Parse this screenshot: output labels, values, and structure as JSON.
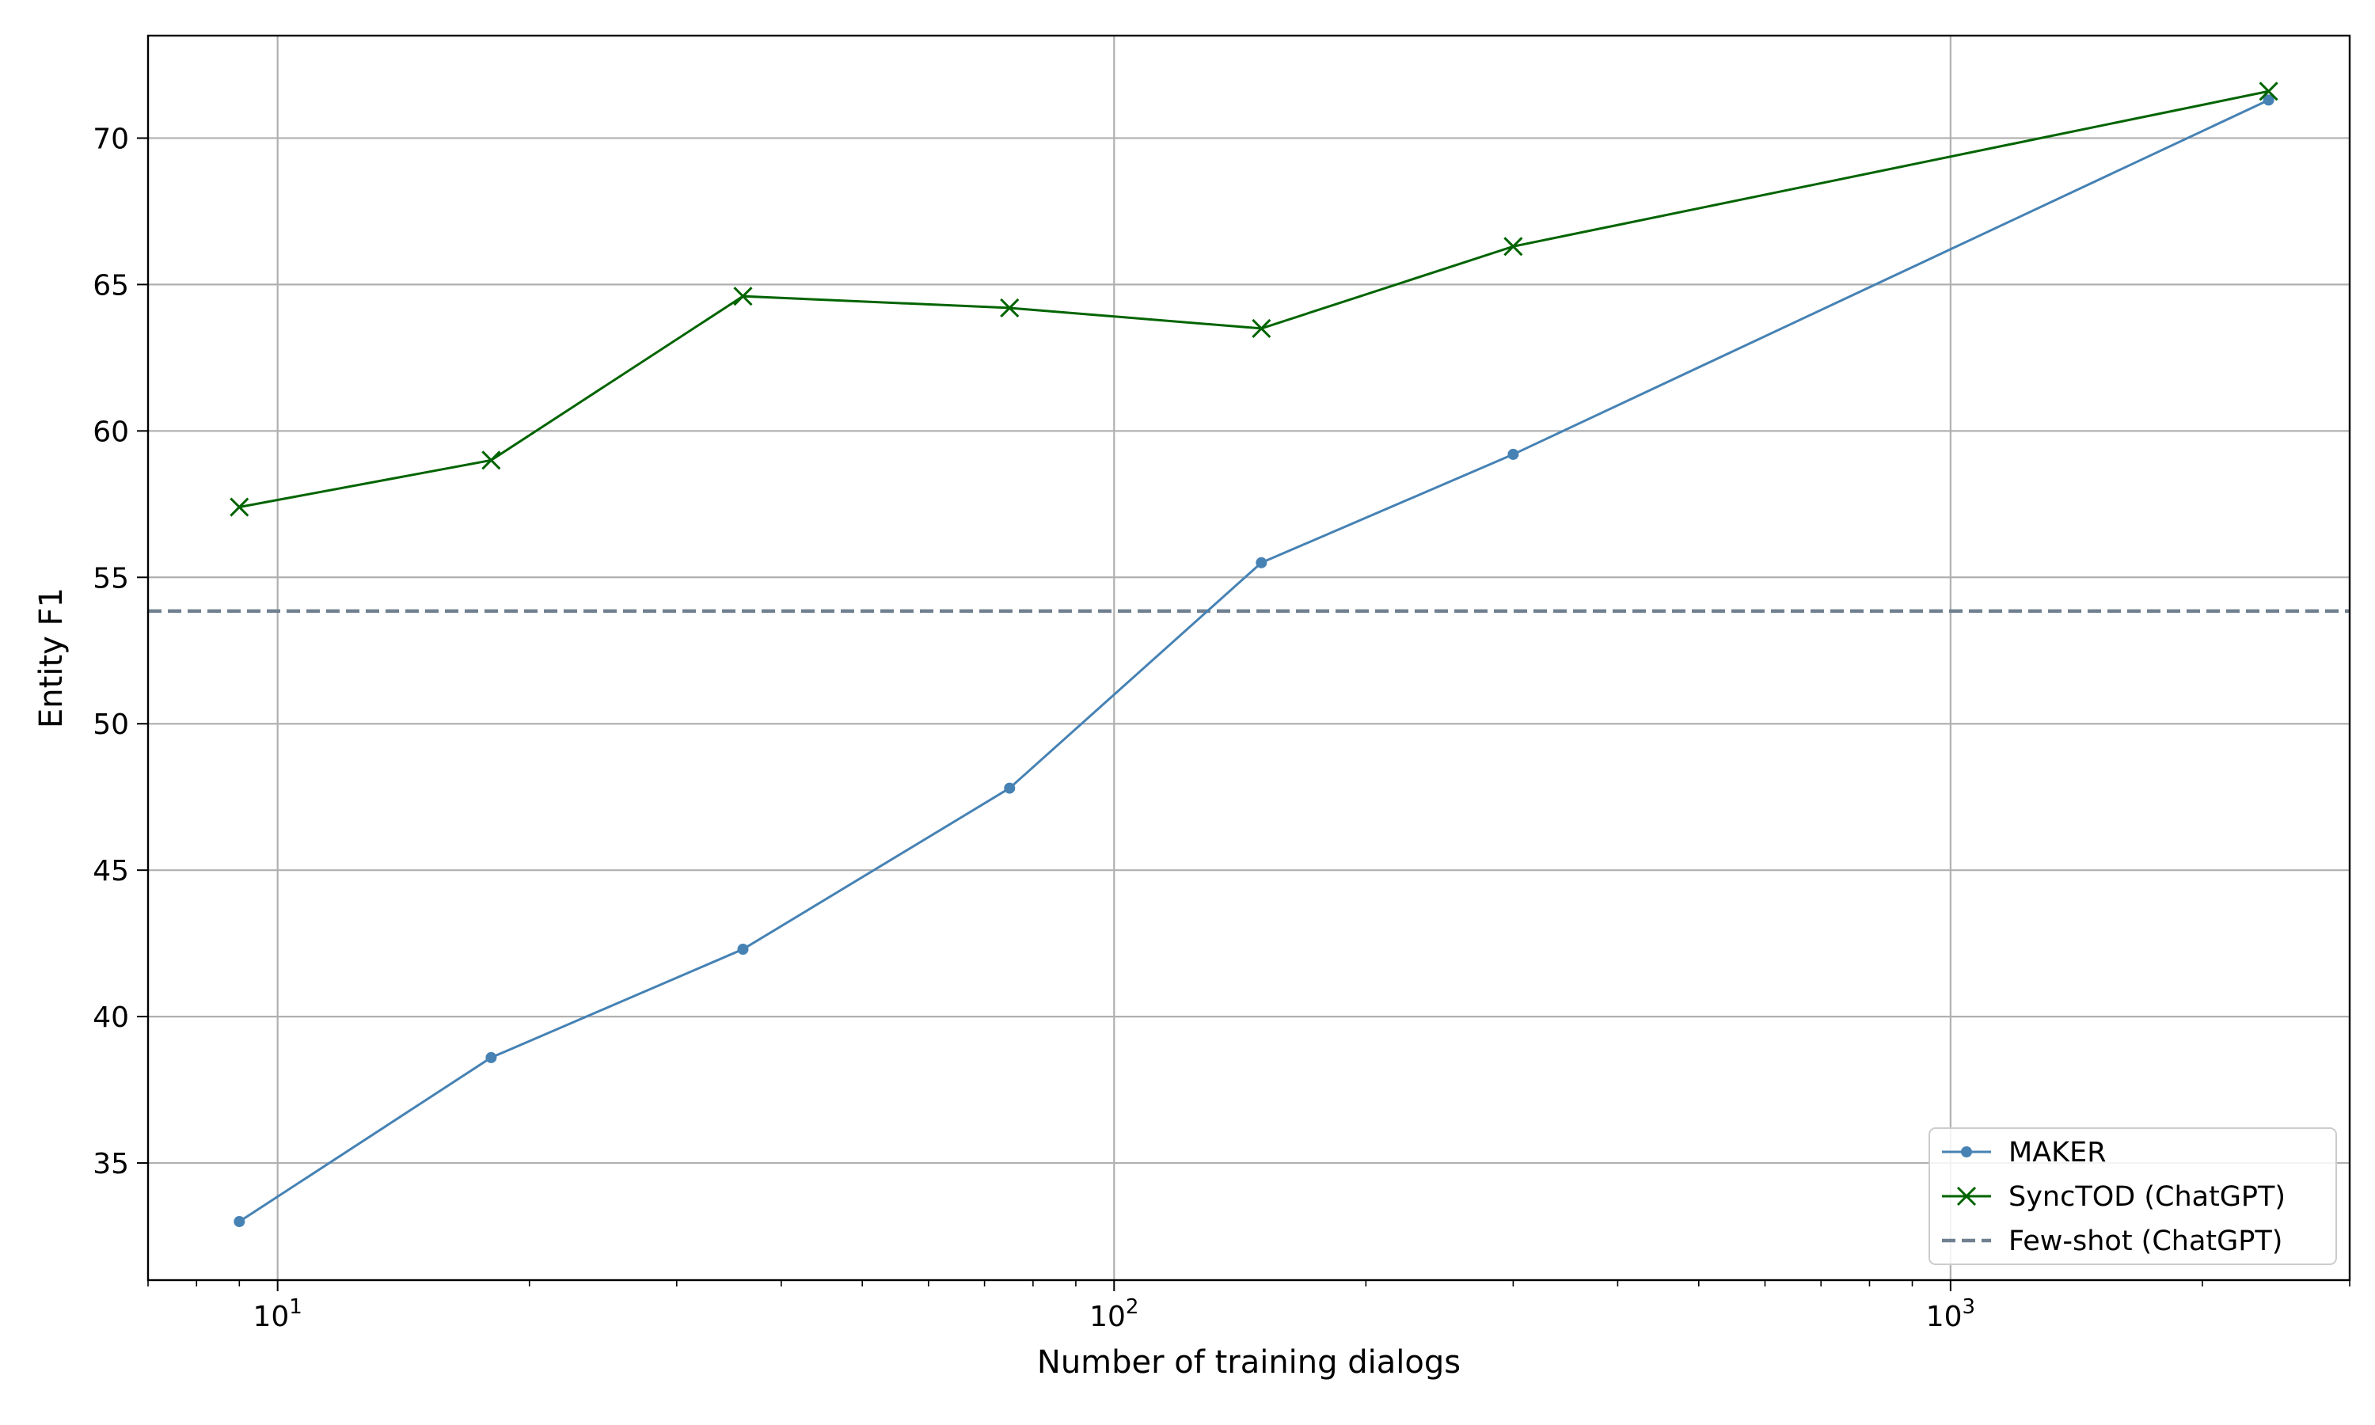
{
  "chart_data": {
    "type": "line",
    "title": "",
    "xlabel": "Number of training dialogs",
    "ylabel": "Entity F1",
    "x_scale": "log",
    "xlim": [
      7,
      3000
    ],
    "ylim": [
      31,
      73.5
    ],
    "grid": true,
    "legend_position": "lower-right",
    "x_ticks": [
      {
        "value": 10,
        "base": "10",
        "exp": "1"
      },
      {
        "value": 100,
        "base": "10",
        "exp": "2"
      },
      {
        "value": 1000,
        "base": "10",
        "exp": "3"
      }
    ],
    "y_ticks": [
      35,
      40,
      45,
      50,
      55,
      60,
      65,
      70
    ],
    "x": [
      9,
      18,
      36,
      75,
      150,
      300,
      2400
    ],
    "series": [
      {
        "name": "MAKER",
        "color": "#4682b4",
        "marker": "dot",
        "values": [
          33.0,
          38.6,
          42.3,
          47.8,
          55.5,
          59.2,
          71.3
        ]
      },
      {
        "name": "SyncTOD (ChatGPT)",
        "color": "#006400",
        "marker": "x",
        "values": [
          57.4,
          59.0,
          64.6,
          64.2,
          63.5,
          66.3,
          71.6
        ]
      }
    ],
    "reference_lines": [
      {
        "name": "Few-shot (ChatGPT)",
        "color": "#708090",
        "style": "dashed",
        "value": 53.85
      }
    ]
  }
}
